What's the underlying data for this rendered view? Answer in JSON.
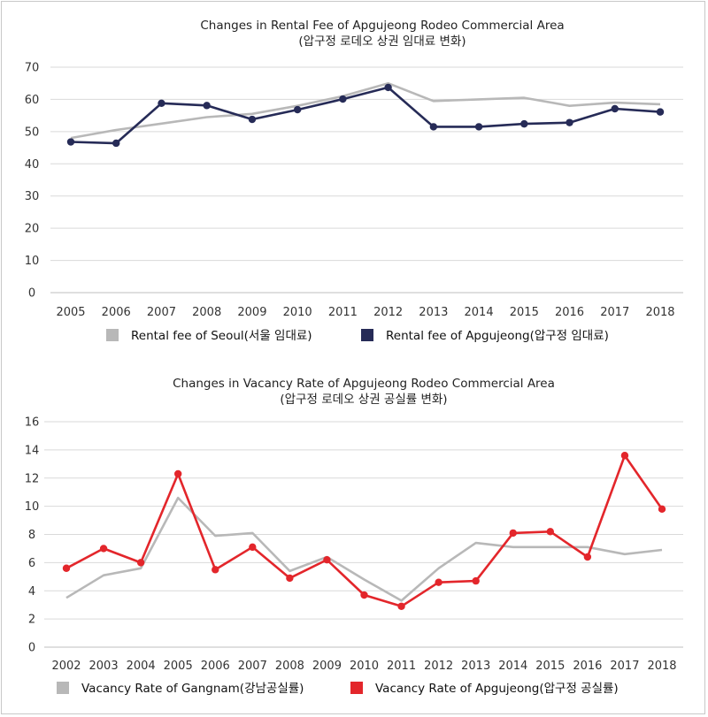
{
  "chart_data": [
    {
      "type": "line",
      "title": "Changes in Rental Fee of Apgujeong Rodeo Commercial Area",
      "subtitle": "(압구정 로데오 상권 임대료 변화)",
      "xlabel": "",
      "ylabel": "",
      "categories": [
        "2005",
        "2006",
        "2007",
        "2008",
        "2009",
        "2010",
        "2011",
        "2012",
        "2013",
        "2014",
        "2015",
        "2016",
        "2017",
        "2018"
      ],
      "yticks": [
        "0",
        "10",
        "20",
        "30",
        "40",
        "50",
        "60",
        "70"
      ],
      "ylim": [
        0,
        70
      ],
      "grid": true,
      "legend_position": "bottom",
      "series": [
        {
          "name": "Rental fee of Seoul(서울 임대료)",
          "color": "#b8b8b8",
          "markers": false,
          "values": [
            48,
            50.5,
            52.5,
            54.5,
            55.5,
            58,
            61,
            65,
            59.5,
            60,
            60.5,
            58,
            59,
            58.5
          ]
        },
        {
          "name": "Rental fee of Apgujeong(압구정 임대료)",
          "color": "#262b57",
          "markers": true,
          "values": [
            46.8,
            46.4,
            58.8,
            58.1,
            53.8,
            56.8,
            60.1,
            63.7,
            51.5,
            51.5,
            52.4,
            52.8,
            57.1,
            56.1
          ]
        }
      ]
    },
    {
      "type": "line",
      "title": "Changes in Vacancy Rate of Apgujeong Rodeo Commercial Area",
      "subtitle": "(압구정 로데오 상권 공실률 변화)",
      "xlabel": "",
      "ylabel": "",
      "categories": [
        "2002",
        "2003",
        "2004",
        "2005",
        "2006",
        "2007",
        "2008",
        "2009",
        "2010",
        "2011",
        "2012",
        "2013",
        "2014",
        "2015",
        "2016",
        "2017",
        "2018"
      ],
      "yticks": [
        "0",
        "2",
        "4",
        "6",
        "8",
        "10",
        "12",
        "14",
        "16"
      ],
      "ylim": [
        0,
        16
      ],
      "grid": true,
      "legend_position": "bottom",
      "series": [
        {
          "name": "Vacancy Rate of Gangnam(강남공실률)",
          "color": "#b8b8b8",
          "markers": false,
          "values": [
            3.5,
            5.1,
            5.6,
            10.6,
            7.9,
            8.1,
            5.4,
            6.4,
            4.8,
            3.3,
            5.6,
            7.4,
            7.1,
            7.1,
            7.1,
            6.6,
            6.9
          ]
        },
        {
          "name": "Vacancy Rate of Apgujeong(압구정 공실률)",
          "color": "#e3262b",
          "markers": true,
          "values": [
            5.6,
            7.0,
            6.0,
            12.3,
            5.5,
            7.1,
            4.9,
            6.2,
            3.7,
            2.9,
            4.6,
            4.7,
            8.1,
            8.2,
            6.4,
            13.6,
            9.8
          ]
        }
      ]
    }
  ]
}
